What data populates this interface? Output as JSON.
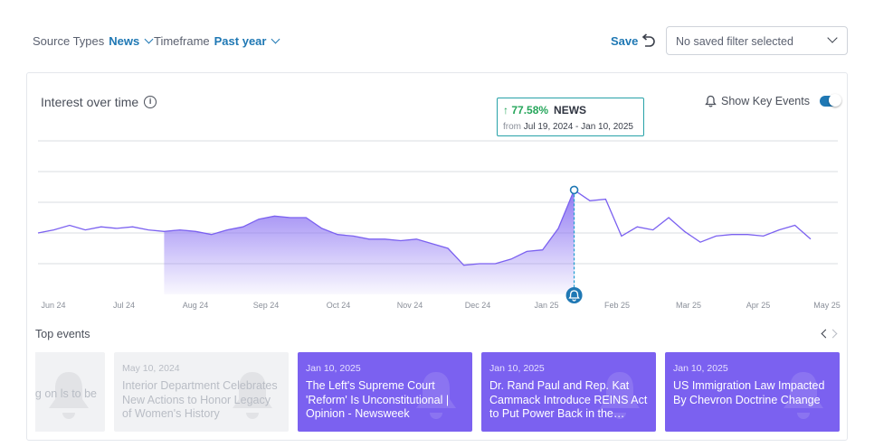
{
  "filters": {
    "source_label": "Source Types",
    "source_value": "News",
    "timeframe_label": "Timeframe",
    "timeframe_value": "Past year"
  },
  "toolbar": {
    "save_label": "Save",
    "saved_filter_placeholder": "No saved filter selected"
  },
  "card": {
    "title": "Interest over time",
    "key_events_label": "Show Key Events"
  },
  "tooltip": {
    "change": "77.58%",
    "source": "NEWS",
    "from_label": "from",
    "range": "Jul 19, 2024 - Jan 10, 2025"
  },
  "chart_data": {
    "type": "area",
    "title": "Interest over time",
    "x_ticks": [
      "Jun 24",
      "Jul 24",
      "Aug 24",
      "Sep 24",
      "Oct 24",
      "Nov 24",
      "Dec 24",
      "Jan 25",
      "Feb 25",
      "Mar 25",
      "Apr 25",
      "May 25"
    ],
    "series": [
      {
        "name": "NEWS",
        "values": [
          40,
          42,
          45,
          42,
          44,
          43,
          44,
          42,
          41,
          42,
          41,
          39,
          42,
          44,
          49,
          51,
          50,
          50,
          43,
          39,
          38,
          36,
          36,
          35,
          36,
          33,
          30,
          19,
          20,
          20,
          23,
          28,
          29,
          43,
          68,
          61,
          62,
          38,
          44,
          42,
          50,
          41,
          34,
          38,
          39,
          39,
          38,
          42,
          45,
          36
        ]
      }
    ],
    "shaded_range": {
      "start_index": 8,
      "end_index": 34
    },
    "highlight_index": 34,
    "ylim": [
      0,
      100
    ],
    "grid": true
  },
  "events": {
    "title": "Top events",
    "items": [
      {
        "date": "",
        "headline": "harking on ls to be",
        "state": "muted"
      },
      {
        "date": "May 10, 2024",
        "headline": "Interior Department Celebrates New Actions to Honor Legacy of Women's History",
        "state": "muted"
      },
      {
        "date": "Jan 10, 2025",
        "headline": "The Left's Supreme Court 'Reform' Is Unconstitutional | Opinion - Newsweek",
        "state": "active"
      },
      {
        "date": "Jan 10, 2025",
        "headline": "Dr. Rand Paul and Rep. Kat Cammack Introduce REINS Act to Put Power Back in the…",
        "state": "active"
      },
      {
        "date": "Jan 10, 2025",
        "headline": "US Immigration Law Impacted By Chevron Doctrine Change",
        "state": "active"
      }
    ]
  }
}
